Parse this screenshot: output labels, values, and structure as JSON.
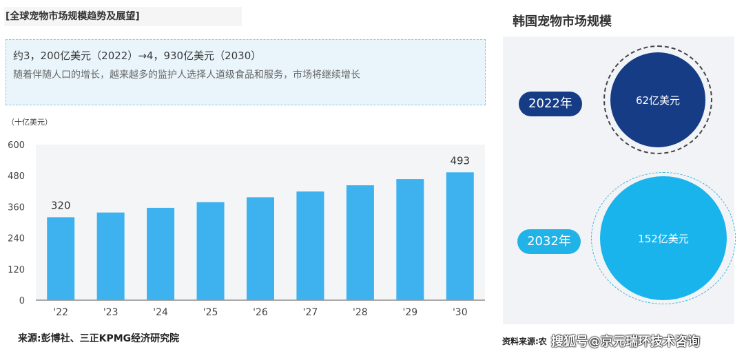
{
  "left": {
    "title": "[全球宠物市场规模趋势及展望]",
    "headline": "约3，200亿美元（2022）→4，930亿美元（2030）",
    "subline": "随着伴随人口的增长，越来越多的监护人选择人道级食品和服务，市场将继续增长",
    "unit": "（十亿美元）",
    "source": "来源:彭博社、三正KPMG经济研究院"
  },
  "right": {
    "title": "韩国宠物市场规模",
    "items": [
      {
        "year": "2022年",
        "value_label": "62亿美元"
      },
      {
        "year": "2032年",
        "value_label": "152亿美元"
      }
    ],
    "source": "资料来源:农"
  },
  "watermark": "搜狐号@京元瑞环技术咨询",
  "colors": {
    "bar": "#3db2ef",
    "dark_circle": "#163c86",
    "light_circle": "#1ab4ec"
  },
  "chart_data": [
    {
      "type": "bar",
      "categories": [
        "'22",
        "'23",
        "'24",
        "'25",
        "'26",
        "'27",
        "'28",
        "'29",
        "'30"
      ],
      "values": [
        320,
        338,
        356,
        378,
        397,
        419,
        443,
        467,
        493
      ],
      "data_labels": {
        "'22": "320",
        "'30": "493"
      },
      "ylim": [
        0,
        600
      ],
      "yticks": [
        0,
        120,
        240,
        360,
        480,
        600
      ],
      "ylabel": "（十亿美元）",
      "grid": false
    },
    {
      "type": "bubble",
      "categories": [
        "2022年",
        "2032年"
      ],
      "values": [
        62,
        152
      ],
      "labels": [
        "62亿美元",
        "152亿美元"
      ]
    }
  ]
}
